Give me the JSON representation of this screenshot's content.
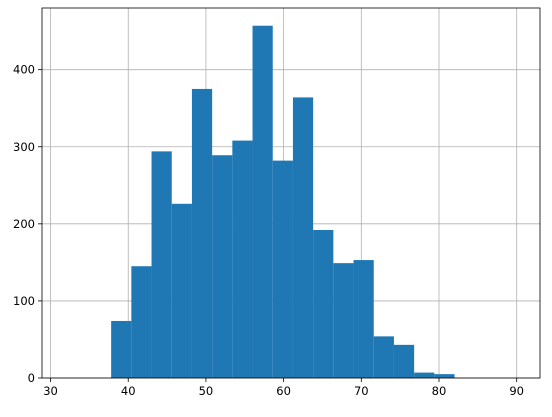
{
  "chart_data": {
    "type": "bar",
    "title": "",
    "xlabel": "",
    "ylabel": "",
    "grid": true,
    "legend": "none",
    "bar_color": "#1f77b4",
    "grid_color": "#b0b0b0",
    "xlim": [
      28.9,
      93.0
    ],
    "ylim": [
      0,
      480
    ],
    "xticks": [
      30,
      40,
      50,
      60,
      70,
      80,
      90
    ],
    "yticks": [
      0,
      100,
      200,
      300,
      400
    ],
    "bins": [
      {
        "x0": 30.0,
        "x1": 32.6,
        "count": 0
      },
      {
        "x0": 32.6,
        "x1": 35.2,
        "count": 0
      },
      {
        "x0": 35.2,
        "x1": 37.8,
        "count": 0
      },
      {
        "x0": 37.8,
        "x1": 40.4,
        "count": 74
      },
      {
        "x0": 40.4,
        "x1": 43.0,
        "count": 145
      },
      {
        "x0": 43.0,
        "x1": 45.6,
        "count": 294
      },
      {
        "x0": 45.6,
        "x1": 48.2,
        "count": 226
      },
      {
        "x0": 48.2,
        "x1": 50.8,
        "count": 375
      },
      {
        "x0": 50.8,
        "x1": 53.4,
        "count": 289
      },
      {
        "x0": 53.4,
        "x1": 56.0,
        "count": 308
      },
      {
        "x0": 56.0,
        "x1": 58.6,
        "count": 457
      },
      {
        "x0": 58.6,
        "x1": 61.2,
        "count": 282
      },
      {
        "x0": 61.2,
        "x1": 63.8,
        "count": 364
      },
      {
        "x0": 63.8,
        "x1": 66.4,
        "count": 192
      },
      {
        "x0": 66.4,
        "x1": 69.0,
        "count": 149
      },
      {
        "x0": 69.0,
        "x1": 71.6,
        "count": 153
      },
      {
        "x0": 71.6,
        "x1": 74.2,
        "count": 54
      },
      {
        "x0": 74.2,
        "x1": 76.8,
        "count": 43
      },
      {
        "x0": 76.8,
        "x1": 79.4,
        "count": 7
      },
      {
        "x0": 79.4,
        "x1": 82.0,
        "count": 5
      },
      {
        "x0": 82.0,
        "x1": 84.6,
        "count": 0
      },
      {
        "x0": 84.6,
        "x1": 87.2,
        "count": 0
      },
      {
        "x0": 87.2,
        "x1": 89.8,
        "count": 0
      },
      {
        "x0": 89.8,
        "x1": 92.4,
        "count": 0
      }
    ]
  }
}
